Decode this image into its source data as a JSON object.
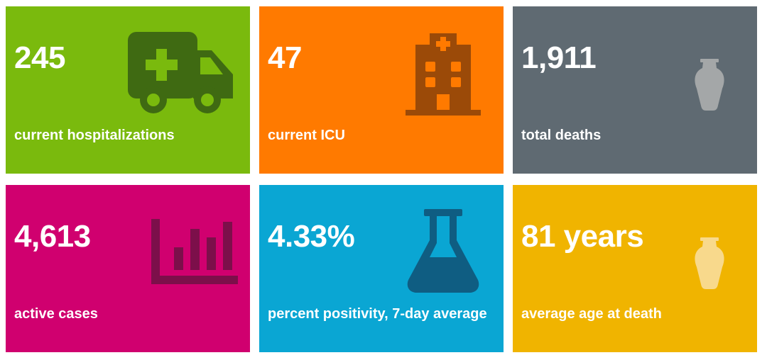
{
  "tiles": [
    {
      "value": "245",
      "label": "current hospitalizations",
      "color": "#7aba0d",
      "icon": "ambulance-icon",
      "icon_color": "#3f6a12"
    },
    {
      "value": "47",
      "label": "current ICU",
      "color": "#ff7a00",
      "icon": "hospital-icon",
      "icon_color": "#9b4a08"
    },
    {
      "value": "1,911",
      "label": "total deaths",
      "color": "#5f6a72",
      "icon": "urn-icon",
      "icon_color": "#a4a7a8"
    },
    {
      "value": "4,613",
      "label": "active cases",
      "color": "#d0006f",
      "icon": "bar-chart-icon",
      "icon_color": "#7c0f4a"
    },
    {
      "value": "4.33%",
      "label": "percent positivity, 7-day average",
      "color": "#0aa6d3",
      "icon": "flask-icon",
      "icon_color": "#0f5d82"
    },
    {
      "value": "81 years",
      "label": "average age at death",
      "color": "#f0b400",
      "icon": "urn-icon",
      "icon_color": "#f8d98c"
    }
  ]
}
